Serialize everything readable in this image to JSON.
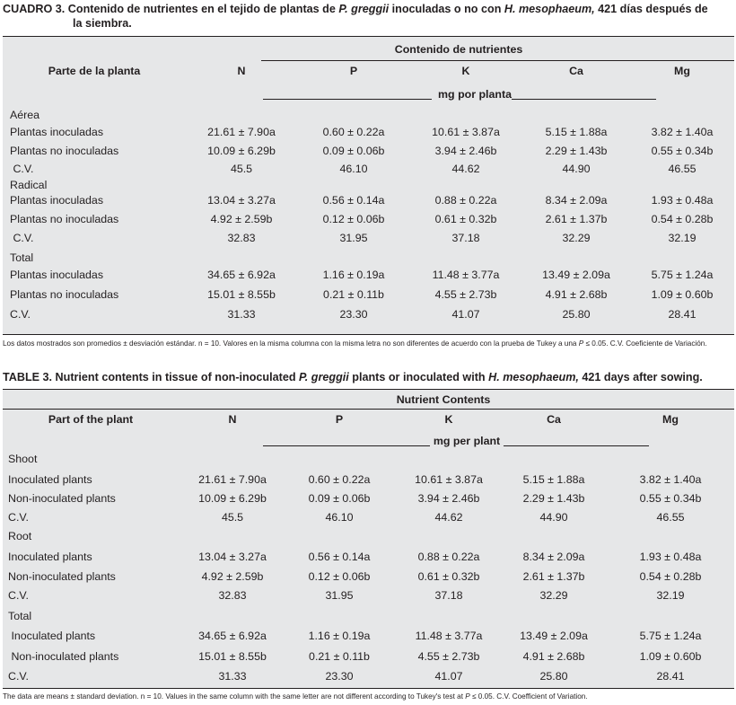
{
  "spanish": {
    "caption_label": "CUADRO 3.",
    "caption_part1": "Contenido de nutrientes en el tejido de plantas de ",
    "caption_species1": "P. greggii",
    "caption_part2": " inoculadas o no con ",
    "caption_species2": "H. mesophaeum,",
    "caption_part3": "  421 días después de",
    "caption_line2": "la siembra.",
    "group_header": "Contenido de nutrientes",
    "part_header": "Parte de la planta",
    "units": "mg por planta",
    "sections": [
      {
        "name": "Aérea",
        "rows": [
          {
            "label": "Plantas inoculadas",
            "values": [
              "21.61 ± 7.90a",
              "0.60 ± 0.22a",
              "10.61 ± 3.87a",
              "5.15 ± 1.88a",
              "3.82 ± 1.40a"
            ]
          },
          {
            "label": "Plantas no inoculadas",
            "values": [
              "10.09 ± 6.29b",
              "0.09 ± 0.06b",
              "3.94 ± 2.46b",
              "2.29 ± 1.43b",
              "0.55 ± 0.34b"
            ]
          },
          {
            "label": " C.V.",
            "values": [
              "45.5",
              "46.10",
              "44.62",
              "44.90",
              "46.55"
            ]
          }
        ]
      },
      {
        "name": "Radical",
        "rows": [
          {
            "label": "Plantas inoculadas",
            "values": [
              "13.04 ± 3.27a",
              "0.56 ± 0.14a",
              "0.88 ± 0.22a",
              "8.34 ± 2.09a",
              "1.93 ± 0.48a"
            ]
          },
          {
            "label": "Plantas no inoculadas",
            "values": [
              "4.92 ± 2.59b",
              "0.12 ± 0.06b",
              "0.61 ± 0.32b",
              "2.61 ± 1.37b",
              "0.54 ± 0.28b"
            ]
          },
          {
            "label": " C.V.",
            "values": [
              "32.83",
              "31.95",
              "37.18",
              "32.29",
              "32.19"
            ]
          }
        ]
      },
      {
        "name": "Total",
        "rows": [
          {
            "label": "Plantas inoculadas",
            "values": [
              "34.65 ± 6.92a",
              "1.16 ± 0.19a",
              "11.48 ± 3.77a",
              "13.49 ± 2.09a",
              "5.75 ± 1.24a"
            ]
          },
          {
            "label": "Plantas no inoculadas",
            "values": [
              "15.01 ± 8.55b",
              "0.21 ± 0.11b",
              "4.55 ± 2.73b",
              "4.91 ± 2.68b",
              "1.09 ± 0.60b"
            ]
          },
          {
            "label": "C.V.",
            "values": [
              "31.33",
              "23.30",
              "41.07",
              "25.80",
              "28.41"
            ]
          }
        ]
      }
    ],
    "footnote_part1": "Los datos mostrados son promedios ± desviación estándar. n = 10. Valores en la misma columna con la misma letra no son diferentes de acuerdo con la prueba de Tukey a una ",
    "footnote_p": "P",
    "footnote_part2": " ≤ 0.05.  C.V. Coeficiente de Variación."
  },
  "english": {
    "caption_label": "TABLE 3.",
    "caption_part1": " Nutrient contents in tissue of non-inoculated ",
    "caption_species1": "P. greggii",
    "caption_part2": " plants or inoculated with ",
    "caption_species2": "H. mesophaeum,",
    "caption_part3": " 421 days after sowing.",
    "group_header": "Nutrient Contents",
    "part_header": "Part of the plant",
    "units": "mg per plant",
    "sections": [
      {
        "name": "Shoot",
        "rows": [
          {
            "label": "Inoculated plants",
            "values": [
              "21.61 ± 7.90a",
              "0.60 ± 0.22a",
              "10.61 ± 3.87a",
              "5.15 ± 1.88a",
              "3.82 ± 1.40a"
            ]
          },
          {
            "label": "Non-inoculated plants",
            "values": [
              "10.09 ± 6.29b",
              "0.09 ± 0.06b",
              "3.94 ± 2.46b",
              "2.29 ± 1.43b",
              "0.55 ± 0.34b"
            ]
          },
          {
            "label": "C.V.",
            "values": [
              "45.5",
              "46.10",
              "44.62",
              "44.90",
              "46.55"
            ]
          }
        ]
      },
      {
        "name": "Root",
        "rows": [
          {
            "label": "Inoculated plants",
            "values": [
              "13.04 ± 3.27a",
              "0.56 ± 0.14a",
              "0.88 ± 0.22a",
              "8.34 ± 2.09a",
              "1.93 ± 0.48a"
            ]
          },
          {
            "label": "Non-inoculated plants",
            "values": [
              "4.92 ± 2.59b",
              "0.12 ± 0.06b",
              "0.61 ± 0.32b",
              "2.61 ± 1.37b",
              "0.54 ± 0.28b"
            ]
          },
          {
            "label": "C.V.",
            "values": [
              "32.83",
              "31.95",
              "37.18",
              "32.29",
              "32.19"
            ]
          }
        ]
      },
      {
        "name": "Total",
        "rows": [
          {
            "label": " Inoculated plants",
            "values": [
              "34.65 ± 6.92a",
              "1.16 ± 0.19a",
              "11.48 ± 3.77a",
              "13.49 ± 2.09a",
              "5.75 ± 1.24a"
            ]
          },
          {
            "label": " Non-inoculated plants",
            "values": [
              "15.01 ± 8.55b",
              "0.21 ± 0.11b",
              "4.55 ± 2.73b",
              "4.91 ± 2.68b",
              "1.09 ± 0.60b"
            ]
          },
          {
            "label": "C.V.",
            "values": [
              "31.33",
              "23.30",
              "41.07",
              "25.80",
              "28.41"
            ]
          }
        ]
      }
    ],
    "footnote_part1": "The data are means ± standard deviation. n = 10. Values in the same column with the same letter are not different according to Tukey's test at ",
    "footnote_p": "P",
    "footnote_part2": " ≤ 0.05. C.V. Coefficient of Variation."
  },
  "columns": [
    "N",
    "P",
    "K",
    "Ca",
    "Mg"
  ],
  "colors": {
    "table_bg": "#e6e7e8",
    "text": "#231f20"
  }
}
